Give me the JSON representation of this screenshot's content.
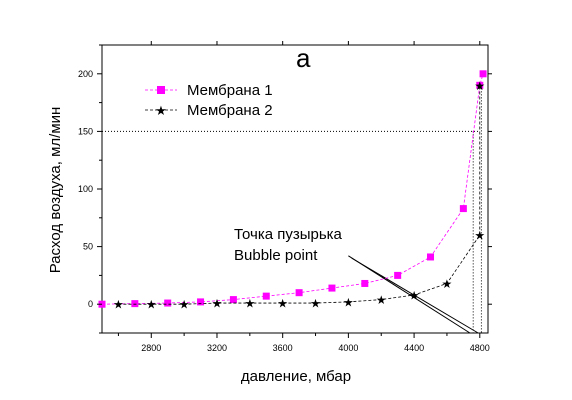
{
  "chart_data": {
    "type": "line",
    "panel_label": "а",
    "title": "",
    "xlabel": "давление, мбар",
    "ylabel": "Расход воздуха, мл/мин",
    "xlim": [
      2500,
      4850
    ],
    "ylim": [
      -25,
      225
    ],
    "x_ticks": [
      2800,
      3200,
      3600,
      4000,
      4400,
      4800
    ],
    "y_ticks": [
      0,
      50,
      100,
      150,
      200
    ],
    "grid": false,
    "legend_position": "top-left",
    "series": [
      {
        "name": "Мембрана 1",
        "color": "#ff00ff",
        "marker": "square",
        "x": [
          2500,
          2700,
          2900,
          3100,
          3300,
          3500,
          3700,
          3900,
          4100,
          4300,
          4500,
          4700,
          4800,
          4820
        ],
        "y": [
          0,
          0.5,
          1,
          2,
          4,
          7,
          10,
          14,
          18,
          25,
          41,
          83,
          190,
          200
        ]
      },
      {
        "name": "Мембрана 2",
        "color": "#000000",
        "marker": "star",
        "x": [
          2600,
          2800,
          3000,
          3200,
          3400,
          3600,
          3800,
          4000,
          4200,
          4400,
          4600,
          4800,
          4800
        ],
        "y": [
          0,
          0,
          0,
          1,
          1,
          1,
          1,
          2,
          4,
          8,
          18,
          60,
          190
        ]
      }
    ],
    "reference_lines": [
      {
        "style": "dotted",
        "orientation": "horizontal",
        "y": 150,
        "x_from": 2500,
        "x_to": 4790
      },
      {
        "style": "dotted",
        "orientation": "vertical",
        "x": 4760,
        "y_from": 150,
        "y_to": -25
      },
      {
        "style": "dotted",
        "orientation": "vertical",
        "x": 4810,
        "y_from": 190,
        "y_to": -25
      }
    ],
    "tangent_lines": [
      {
        "x1": 4000,
        "y1": 42,
        "x2": 4740,
        "y2": -25
      },
      {
        "x1": 4020,
        "y1": 40,
        "x2": 4790,
        "y2": -25
      }
    ],
    "annotation": {
      "line1": "Точка пузырька",
      "line2": "Bubble point"
    }
  }
}
